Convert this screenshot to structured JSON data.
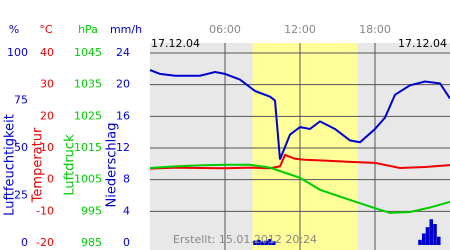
{
  "chart_data": {
    "type": "line",
    "date_left": "17.12.04",
    "date_right": "17.12.04",
    "footer": "Erstellt: 15.01.2012 20:24",
    "xlim": [
      0,
      24
    ],
    "xticks": [
      {
        "value": 6,
        "label": "06:00"
      },
      {
        "value": 12,
        "label": "12:00"
      },
      {
        "value": 18,
        "label": "18:00"
      }
    ],
    "daylight": [
      8.2,
      16.6
    ],
    "grid": true,
    "series": [
      {
        "name": "Luftfeuchtigkeit",
        "unit": "%",
        "type": "line",
        "color": "#0000cc",
        "lim": [
          0,
          105.25
        ],
        "ticks": [
          0,
          25,
          50,
          75,
          100
        ],
        "x": [
          0,
          0.8,
          2,
          4,
          5.2,
          6,
          7.2,
          8.4,
          9.6,
          10,
          10.4,
          11.2,
          12,
          12.8,
          13.6,
          14.8,
          16,
          16.8,
          18,
          18.8,
          19.6,
          20.8,
          22,
          23.2,
          24
        ],
        "values": [
          91,
          89,
          88,
          88,
          90,
          89,
          86,
          80,
          77,
          75,
          44,
          57,
          61,
          60,
          64,
          60,
          54,
          53,
          60,
          66,
          78,
          83,
          85,
          84,
          76
        ]
      },
      {
        "name": "Temperatur",
        "unit": "°C",
        "type": "line",
        "color": "#ee0000",
        "lim": [
          -20,
          43.15
        ],
        "ticks": [
          -20,
          -10,
          0,
          10,
          20,
          30,
          40
        ],
        "x": [
          0,
          2,
          4,
          6,
          8,
          9.6,
          10.4,
          10.8,
          11.6,
          12.4,
          14,
          16,
          18,
          20,
          22,
          24
        ],
        "values": [
          3.5,
          3.8,
          3.7,
          3.6,
          3.8,
          3.6,
          4.2,
          7.8,
          6.6,
          6.3,
          6.0,
          5.6,
          5.3,
          3.7,
          4.0,
          4.6
        ]
      },
      {
        "name": "Luftdruck",
        "unit": "hPa",
        "type": "line",
        "color": "#00cc00",
        "lim": [
          985,
          1048.15
        ],
        "ticks": [
          985,
          995,
          1005,
          1015,
          1025,
          1035,
          1045
        ],
        "x": [
          0,
          2,
          4,
          6,
          8,
          9.6,
          12,
          13.6,
          16,
          18,
          19.2,
          20.8,
          22.4,
          24
        ],
        "values": [
          1008.7,
          1009.2,
          1009.5,
          1009.7,
          1009.7,
          1008.8,
          1005.6,
          1001.8,
          998.6,
          996.0,
          994.5,
          994.8,
          996.2,
          998.0
        ]
      },
      {
        "name": "Niederschlag",
        "unit": "mm/h",
        "type": "bar",
        "color": "#0000cc",
        "lim": [
          0,
          25.26
        ],
        "ticks": [
          0,
          4,
          8,
          12,
          16,
          20,
          24
        ],
        "x": [
          8.4,
          8.7,
          9.0,
          9.3,
          9.6,
          9.9,
          21.6,
          21.9,
          22.2,
          22.5,
          22.8,
          23.1
        ],
        "values": [
          0.3,
          0.4,
          0.2,
          0.3,
          0.5,
          0.2,
          0.4,
          1.2,
          2.0,
          3.0,
          2.4,
          0.8
        ]
      }
    ]
  }
}
